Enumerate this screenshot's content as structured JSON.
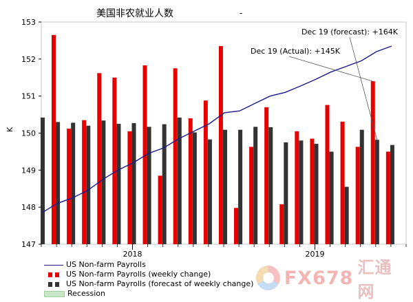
{
  "chart_data": {
    "type": "bar",
    "title": "美国非农就业人数",
    "title_mark": "-",
    "ylabel": "K",
    "ylim": [
      147,
      153
    ],
    "yticks": [
      147,
      148,
      149,
      150,
      151,
      152,
      153
    ],
    "x_tick_labels": [
      "2018",
      "2019"
    ],
    "months": 24,
    "series": [
      {
        "name": "US Non-farm Payrolls (weekly change)",
        "color": "#e60000",
        "values": [
          152.65,
          150.12,
          150.35,
          151.62,
          151.5,
          150.05,
          151.83,
          148.85,
          151.75,
          150.4,
          150.88,
          152.35,
          147.98,
          149.63,
          150.7,
          148.08,
          150.05,
          149.85,
          150.76,
          150.31,
          149.63,
          151.4,
          149.5,
          null
        ]
      },
      {
        "name": "US Non-farm Payrolls (forecast of weekly change)",
        "color": "#333333",
        "values": [
          150.42,
          150.3,
          150.28,
          150.2,
          150.34,
          150.25,
          150.27,
          150.17,
          150.24,
          150.42,
          150.02,
          149.83,
          150.09,
          150.09,
          150.17,
          150.16,
          149.75,
          149.8,
          149.71,
          149.5,
          148.55,
          150.09,
          149.82,
          149.68
        ]
      },
      {
        "name": "US Non-farm Payrolls",
        "color": "#1a1a8c",
        "type": "line",
        "values": [
          147.85,
          148.1,
          148.25,
          148.45,
          148.75,
          149.0,
          149.2,
          149.45,
          149.6,
          149.85,
          150.05,
          150.25,
          150.55,
          150.6,
          150.8,
          151.0,
          151.1,
          151.27,
          151.45,
          151.65,
          151.8,
          151.95,
          152.2,
          152.35
        ]
      }
    ],
    "legend": [
      {
        "label": "US Non-farm Payrolls",
        "kind": "line"
      },
      {
        "label": "US Non-farm Payrolls (weekly change)",
        "kind": "bar-red"
      },
      {
        "label": "US Non-farm Payrolls (forecast of weekly change)",
        "kind": "bar-dark"
      },
      {
        "label": "Recession",
        "kind": "area-green"
      }
    ],
    "legend_position": "bottom-left",
    "annotations": [
      {
        "text": "Dec 19 (forecast): +164K",
        "target_month": 22,
        "target_series": "forecast"
      },
      {
        "text": "Dec 19 (Actual): +145K",
        "target_month": 21,
        "target_series": "actual"
      }
    ],
    "grid": false
  },
  "watermark": {
    "text": "FX678",
    "text2": "汇通网"
  }
}
